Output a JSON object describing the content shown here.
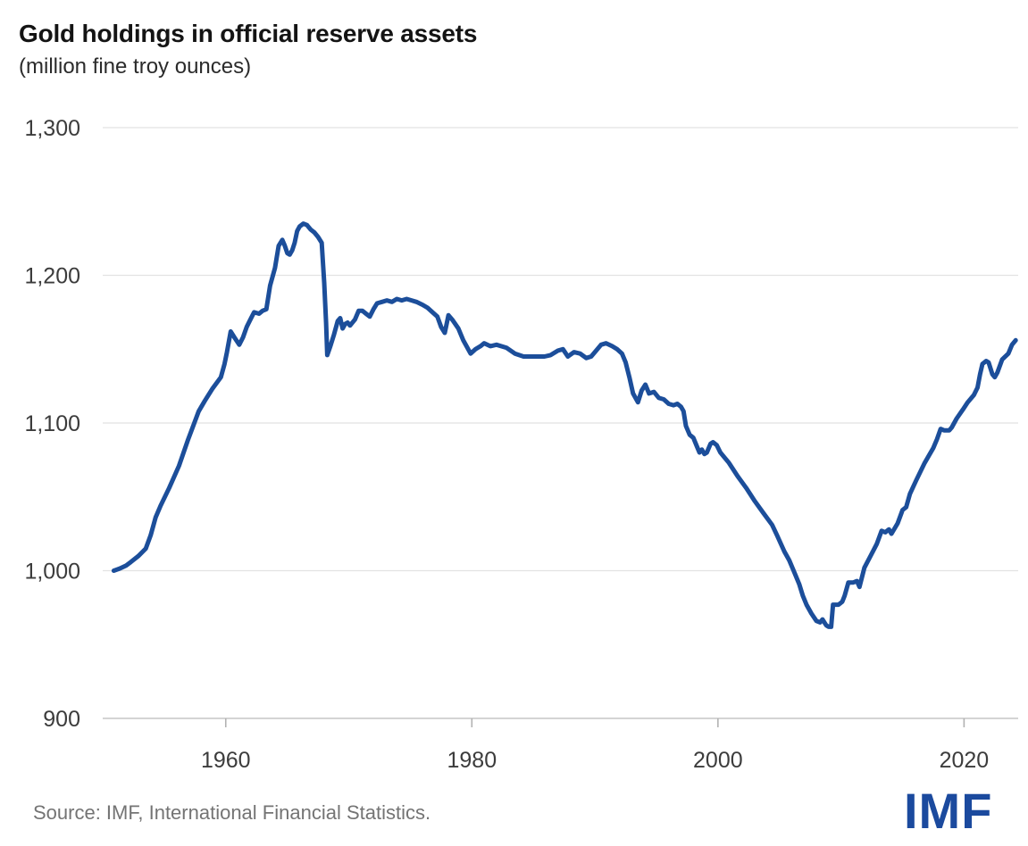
{
  "header": {
    "title": "Gold holdings in official reserve assets",
    "subtitle": "(million fine troy ounces)"
  },
  "footer": {
    "source": "Source: IMF, International Financial Statistics.",
    "logo_text": "IMF"
  },
  "colors": {
    "line": "#1c4e9a",
    "logo": "#1b4a9e",
    "grid": "#e2e2e2",
    "axis": "#c6c6c6",
    "tick": "#b2b2b2",
    "axis_label": "#3c3c3c"
  },
  "chart_data": {
    "type": "line",
    "title": "Gold holdings in official reserve assets",
    "unit": "million fine troy ounces",
    "grid": "horizontal",
    "legend": "none",
    "x_axis": {
      "range": [
        1950,
        2024.4
      ],
      "ticks": [
        {
          "value": 1960,
          "label": "1960"
        },
        {
          "value": 1980,
          "label": "1980"
        },
        {
          "value": 2000,
          "label": "2000"
        },
        {
          "value": 2020,
          "label": "2020"
        }
      ]
    },
    "y_axis": {
      "range": [
        900,
        1300
      ],
      "ticks": [
        {
          "value": 900,
          "label": "900"
        },
        {
          "value": 1000,
          "label": "1,000"
        },
        {
          "value": 1100,
          "label": "1,100"
        },
        {
          "value": 1200,
          "label": "1,200"
        },
        {
          "value": 1300,
          "label": "1,300"
        }
      ]
    },
    "series": [
      {
        "name": "Gold holdings in official reserve assets",
        "color": "#1c4e9a",
        "points": [
          [
            1950.9,
            1000
          ],
          [
            1951.4,
            1001.5
          ],
          [
            1951.9,
            1003.5
          ],
          [
            1952.3,
            1006
          ],
          [
            1952.9,
            1010
          ],
          [
            1953.5,
            1015
          ],
          [
            1953.9,
            1024
          ],
          [
            1954.3,
            1036
          ],
          [
            1954.7,
            1044
          ],
          [
            1955.4,
            1056
          ],
          [
            1956.2,
            1071
          ],
          [
            1956.9,
            1088
          ],
          [
            1957.4,
            1099
          ],
          [
            1957.8,
            1108
          ],
          [
            1958.3,
            1115
          ],
          [
            1958.9,
            1123
          ],
          [
            1959.6,
            1131
          ],
          [
            1959.9,
            1140
          ],
          [
            1960.1,
            1148
          ],
          [
            1960.4,
            1162
          ],
          [
            1960.7,
            1158
          ],
          [
            1961.1,
            1153
          ],
          [
            1961.4,
            1158
          ],
          [
            1961.7,
            1165
          ],
          [
            1962.0,
            1170
          ],
          [
            1962.3,
            1175
          ],
          [
            1962.7,
            1174
          ],
          [
            1963.0,
            1176
          ],
          [
            1963.3,
            1177
          ],
          [
            1963.6,
            1193
          ],
          [
            1964.0,
            1205
          ],
          [
            1964.3,
            1220
          ],
          [
            1964.6,
            1224
          ],
          [
            1964.8,
            1220
          ],
          [
            1965.0,
            1215
          ],
          [
            1965.2,
            1214
          ],
          [
            1965.4,
            1217
          ],
          [
            1965.6,
            1222
          ],
          [
            1965.8,
            1230
          ],
          [
            1966.0,
            1233
          ],
          [
            1966.3,
            1235
          ],
          [
            1966.6,
            1234
          ],
          [
            1966.9,
            1231
          ],
          [
            1967.2,
            1229
          ],
          [
            1967.5,
            1226
          ],
          [
            1967.8,
            1222
          ],
          [
            1968.0,
            1195
          ],
          [
            1968.15,
            1168
          ],
          [
            1968.25,
            1146
          ],
          [
            1968.5,
            1152
          ],
          [
            1968.8,
            1160
          ],
          [
            1969.1,
            1169
          ],
          [
            1969.3,
            1171
          ],
          [
            1969.5,
            1164
          ],
          [
            1969.7,
            1167
          ],
          [
            1969.9,
            1168
          ],
          [
            1970.1,
            1166
          ],
          [
            1970.5,
            1170
          ],
          [
            1970.8,
            1176
          ],
          [
            1971.1,
            1176
          ],
          [
            1971.4,
            1174
          ],
          [
            1971.7,
            1172
          ],
          [
            1972.0,
            1177
          ],
          [
            1972.3,
            1181
          ],
          [
            1972.7,
            1182
          ],
          [
            1973.1,
            1183
          ],
          [
            1973.5,
            1182
          ],
          [
            1973.9,
            1184
          ],
          [
            1974.3,
            1183
          ],
          [
            1974.7,
            1184
          ],
          [
            1975.1,
            1183
          ],
          [
            1975.5,
            1182
          ],
          [
            1976.0,
            1180
          ],
          [
            1976.4,
            1178
          ],
          [
            1976.8,
            1175
          ],
          [
            1977.2,
            1172
          ],
          [
            1977.5,
            1165
          ],
          [
            1977.8,
            1161
          ],
          [
            1978.1,
            1173
          ],
          [
            1978.4,
            1170
          ],
          [
            1978.9,
            1164
          ],
          [
            1979.3,
            1156
          ],
          [
            1979.9,
            1147
          ],
          [
            1980.3,
            1150
          ],
          [
            1980.7,
            1152
          ],
          [
            1981.0,
            1154
          ],
          [
            1981.5,
            1152
          ],
          [
            1982.0,
            1153
          ],
          [
            1982.8,
            1151
          ],
          [
            1983.5,
            1147
          ],
          [
            1984.2,
            1145
          ],
          [
            1985.0,
            1145
          ],
          [
            1985.9,
            1145
          ],
          [
            1986.4,
            1146
          ],
          [
            1987.0,
            1149
          ],
          [
            1987.4,
            1150
          ],
          [
            1987.8,
            1145
          ],
          [
            1988.3,
            1148
          ],
          [
            1988.8,
            1147
          ],
          [
            1989.3,
            1144
          ],
          [
            1989.7,
            1145
          ],
          [
            1990.1,
            1149
          ],
          [
            1990.5,
            1153
          ],
          [
            1990.9,
            1154
          ],
          [
            1991.4,
            1152
          ],
          [
            1991.8,
            1150
          ],
          [
            1992.2,
            1147
          ],
          [
            1992.5,
            1141
          ],
          [
            1992.8,
            1131
          ],
          [
            1993.1,
            1120
          ],
          [
            1993.5,
            1114
          ],
          [
            1993.8,
            1122
          ],
          [
            1994.1,
            1126
          ],
          [
            1994.4,
            1120
          ],
          [
            1994.8,
            1121
          ],
          [
            1995.2,
            1117
          ],
          [
            1995.6,
            1116
          ],
          [
            1996.0,
            1113
          ],
          [
            1996.4,
            1112
          ],
          [
            1996.7,
            1113
          ],
          [
            1997.0,
            1111
          ],
          [
            1997.2,
            1108
          ],
          [
            1997.4,
            1098
          ],
          [
            1997.7,
            1092
          ],
          [
            1998.0,
            1090
          ],
          [
            1998.3,
            1084
          ],
          [
            1998.5,
            1080
          ],
          [
            1998.7,
            1082
          ],
          [
            1998.9,
            1079
          ],
          [
            1999.1,
            1080
          ],
          [
            1999.4,
            1086
          ],
          [
            1999.6,
            1087
          ],
          [
            1999.9,
            1085
          ],
          [
            2000.2,
            1080
          ],
          [
            2000.5,
            1077
          ],
          [
            2000.9,
            1073
          ],
          [
            2001.6,
            1064
          ],
          [
            2002.3,
            1056
          ],
          [
            2003.0,
            1047
          ],
          [
            2003.7,
            1039
          ],
          [
            2004.4,
            1031
          ],
          [
            2004.8,
            1024
          ],
          [
            2005.4,
            1013
          ],
          [
            2005.8,
            1007
          ],
          [
            2006.2,
            999
          ],
          [
            2006.6,
            991
          ],
          [
            2006.9,
            983
          ],
          [
            2007.2,
            977
          ],
          [
            2007.6,
            971
          ],
          [
            2008.0,
            966
          ],
          [
            2008.3,
            965
          ],
          [
            2008.5,
            967
          ],
          [
            2008.8,
            963
          ],
          [
            2009.0,
            962
          ],
          [
            2009.2,
            962
          ],
          [
            2009.35,
            977
          ],
          [
            2009.8,
            977
          ],
          [
            2010.1,
            979
          ],
          [
            2010.3,
            983
          ],
          [
            2010.6,
            992
          ],
          [
            2011.0,
            992
          ],
          [
            2011.3,
            993
          ],
          [
            2011.5,
            989
          ],
          [
            2011.9,
            1002
          ],
          [
            2012.4,
            1010
          ],
          [
            2012.9,
            1018
          ],
          [
            2013.3,
            1027
          ],
          [
            2013.6,
            1026
          ],
          [
            2013.9,
            1028
          ],
          [
            2014.1,
            1025
          ],
          [
            2014.6,
            1032
          ],
          [
            2015.0,
            1041
          ],
          [
            2015.3,
            1043
          ],
          [
            2015.6,
            1052
          ],
          [
            2016.1,
            1061
          ],
          [
            2016.8,
            1073
          ],
          [
            2017.5,
            1083
          ],
          [
            2017.8,
            1089
          ],
          [
            2018.1,
            1096
          ],
          [
            2018.4,
            1095
          ],
          [
            2018.8,
            1095
          ],
          [
            2019.0,
            1097
          ],
          [
            2019.4,
            1103
          ],
          [
            2019.9,
            1109
          ],
          [
            2020.3,
            1114
          ],
          [
            2020.8,
            1119
          ],
          [
            2021.1,
            1124
          ],
          [
            2021.3,
            1133
          ],
          [
            2021.5,
            1140
          ],
          [
            2021.8,
            1142
          ],
          [
            2022.0,
            1141
          ],
          [
            2022.3,
            1133
          ],
          [
            2022.5,
            1131
          ],
          [
            2022.7,
            1134
          ],
          [
            2023.1,
            1143
          ],
          [
            2023.6,
            1147
          ],
          [
            2023.9,
            1153
          ],
          [
            2024.2,
            1156
          ]
        ]
      }
    ]
  }
}
